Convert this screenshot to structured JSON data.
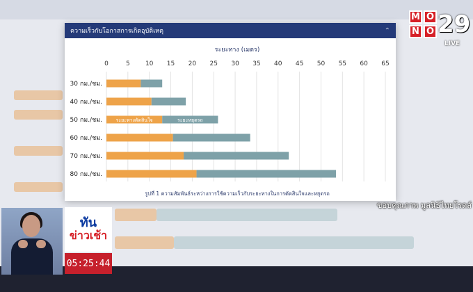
{
  "panel": {
    "header_title": "ความเร็วกับโอกาสการเกิดอุบัติเหตุ",
    "collapse_icon": "chevron-up-icon"
  },
  "chart_data": {
    "type": "bar",
    "orientation": "horizontal",
    "stacked": true,
    "title": "ระยะทาง (เมตร)",
    "caption": "รูปที่ 1 ความสัมพันธ์ระหว่างการใช้ความเร็วกับระยะทางในการตัดสินใจและหยุดรถ",
    "categories": [
      "30 กม./ชม.",
      "40 กม./ชม.",
      "50 กม./ชม.",
      "60 กม./ชม.",
      "70 กม./ชม.",
      "80 กม./ชม."
    ],
    "series": [
      {
        "name": "ระยะทางตัดสินใจ",
        "color": "#eea349",
        "values": [
          8,
          10.5,
          13,
          15.5,
          18,
          21
        ]
      },
      {
        "name": "ระยะหยุดรถ",
        "color": "#7ea1a8",
        "values": [
          5,
          8,
          13,
          18,
          24.5,
          32.5
        ]
      }
    ],
    "xticks": [
      0,
      5,
      10,
      15,
      20,
      25,
      30,
      35,
      40,
      45,
      50,
      55,
      60,
      65
    ],
    "xlim": [
      0,
      65
    ],
    "grid": true
  },
  "broadcast": {
    "channel_number": "29",
    "channel_letters": [
      "M",
      "O",
      "N",
      "O"
    ],
    "live_label": "LIVE",
    "credit": "ขอบคุณภาพ มูลนิธิไทยโรดส์",
    "show_logo_top": "ทัน",
    "show_logo_bottom": "ข่าวเช้า",
    "clock": "05:25:44"
  }
}
